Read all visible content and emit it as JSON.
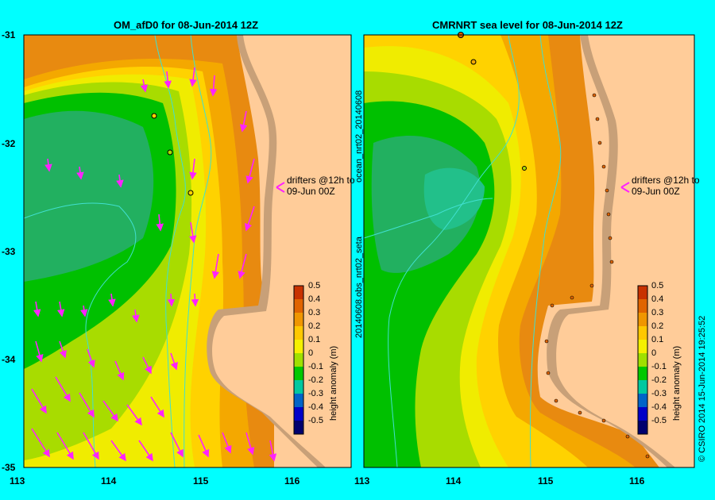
{
  "left_panel": {
    "title": "OM_afD0 for 08-Jun-2014 12Z",
    "drifters_note_line1": "drifters @12h to",
    "drifters_note_line2": "09-Jun 00Z",
    "colorbar_label": "height anomaly (m)"
  },
  "right_panel": {
    "title": "CMRNRT sea level  for 08-Jun-2014 12Z",
    "side_label_top": "ocean_nrt02_20140608",
    "side_label_bottom": "20140608.obs_nrt02_seta",
    "drifters_note_line1": "drifters @12h to",
    "drifters_note_line2": "09-Jun 00Z",
    "colorbar_label": "height anomaly (m)"
  },
  "y_ticks": [
    "-31",
    "-32",
    "-33",
    "-34",
    "-35"
  ],
  "x_ticks": [
    "113",
    "114",
    "115",
    "116"
  ],
  "colorbar_ticks": [
    "0.5",
    "0.4",
    "0.3",
    "0.2",
    "0.1",
    "0",
    "-0.1",
    "-0.2",
    "-0.3",
    "-0.4",
    "-0.5"
  ],
  "colorbar_colors": [
    "#c83200",
    "#e06400",
    "#f09600",
    "#ffc800",
    "#f5f000",
    "#a0e000",
    "#00c800",
    "#00c8a0",
    "#0064c8",
    "#0000c8",
    "#00006e"
  ],
  "credit": "© CSIRO 2014   15-Jun-2014 19:25:52",
  "colors": {
    "background": "#00ffff",
    "land": "#ffcc99",
    "shelf": "#c8a078",
    "arrow": "#ff22ff",
    "contour": "#40e0d0"
  }
}
